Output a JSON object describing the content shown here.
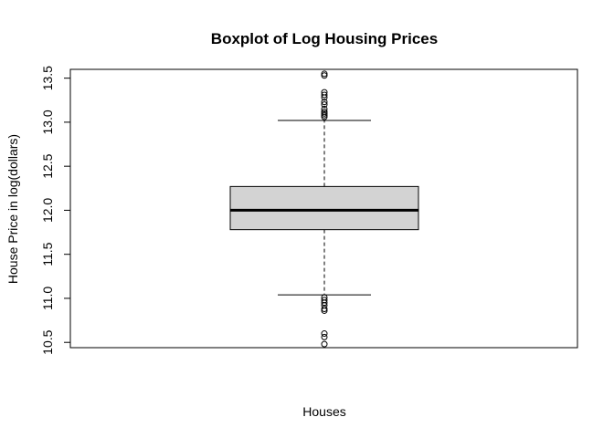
{
  "chart_data": {
    "type": "boxplot",
    "title": "Boxplot of Log Housing Prices",
    "xlabel": "Houses",
    "ylabel": "House Price in log(dollars)",
    "ylim": [
      10.44,
      13.6
    ],
    "yticks": [
      "10.5",
      "11.0",
      "11.5",
      "12.0",
      "12.5",
      "13.0",
      "13.5"
    ],
    "box": {
      "lower_whisker": 11.04,
      "q1": 11.78,
      "median": 12.0,
      "q3": 12.27,
      "upper_whisker": 13.02
    },
    "outliers_high": [
      13.06,
      13.08,
      13.1,
      13.12,
      13.15,
      13.2,
      13.23,
      13.28,
      13.31,
      13.34,
      13.53,
      13.55
    ],
    "outliers_low": [
      11.01,
      10.98,
      10.95,
      10.92,
      10.88,
      10.86,
      10.6,
      10.56,
      10.48
    ],
    "box_fill": "#d3d3d3",
    "grid": false
  }
}
